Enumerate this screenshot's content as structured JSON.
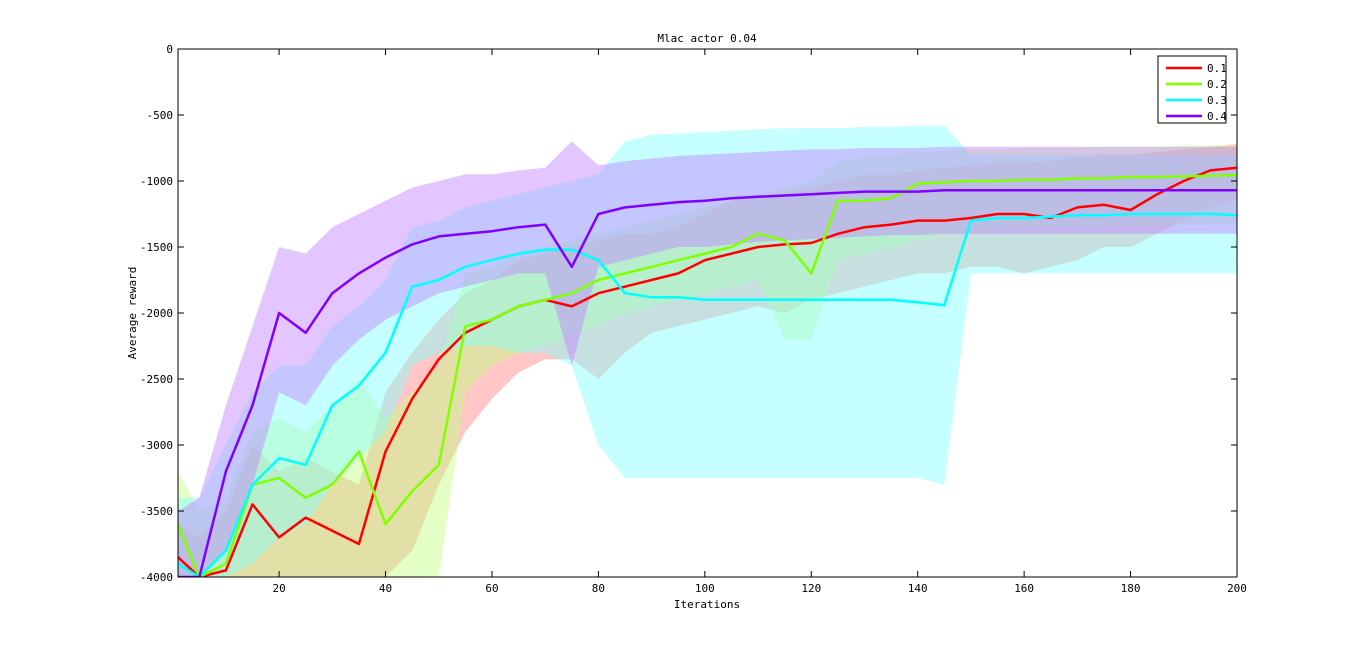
{
  "chart_data": {
    "type": "line",
    "title": "Mlac actor 0.04",
    "xlabel": "Iterations",
    "ylabel": "Average reward",
    "xlim": [
      1,
      200
    ],
    "ylim": [
      -4000,
      0
    ],
    "xticks": [
      20,
      40,
      60,
      80,
      100,
      120,
      140,
      160,
      180,
      200
    ],
    "yticks": [
      0,
      -500,
      -1000,
      -1500,
      -2000,
      -2500,
      -3000,
      -3500,
      -4000
    ],
    "grid": false,
    "legend_position": "top-right",
    "series": [
      {
        "name": "0.1",
        "color": "#ff0000",
        "band_color": "#ff8080",
        "x": [
          1,
          5,
          10,
          15,
          20,
          25,
          30,
          35,
          40,
          45,
          50,
          55,
          60,
          65,
          70,
          75,
          80,
          85,
          90,
          95,
          100,
          105,
          110,
          115,
          120,
          125,
          130,
          135,
          140,
          145,
          150,
          155,
          160,
          165,
          170,
          175,
          180,
          185,
          190,
          195,
          200
        ],
        "values": [
          -3850,
          -4000,
          -3950,
          -3450,
          -3700,
          -3550,
          -3650,
          -3750,
          -3050,
          -2650,
          -2350,
          -2150,
          -2050,
          -1950,
          -1900,
          -1950,
          -1850,
          -1800,
          -1750,
          -1700,
          -1600,
          -1550,
          -1500,
          -1480,
          -1470,
          -1400,
          -1350,
          -1330,
          -1300,
          -1300,
          -1280,
          -1250,
          -1250,
          -1280,
          -1200,
          -1180,
          -1220,
          -1100,
          -1000,
          -920,
          -900
        ],
        "lower": [
          -4000,
          -4000,
          -4000,
          -4000,
          -4000,
          -4000,
          -4000,
          -4000,
          -4000,
          -3800,
          -3300,
          -2900,
          -2650,
          -2450,
          -2350,
          -2350,
          -2500,
          -2300,
          -2150,
          -2100,
          -2050,
          -2000,
          -1950,
          -2000,
          -1900,
          -1850,
          -1800,
          -1750,
          -1700,
          -1700,
          -1650,
          -1650,
          -1700,
          -1650,
          -1600,
          -1500,
          -1500,
          -1400,
          -1300,
          -1200,
          -1150
        ],
        "upper": [
          -3600,
          -3700,
          -3500,
          -3000,
          -3200,
          -3100,
          -3200,
          -3300,
          -2600,
          -2300,
          -2050,
          -1850,
          -1750,
          -1600,
          -1550,
          -1500,
          -1450,
          -1400,
          -1400,
          -1350,
          -1250,
          -1150,
          -1100,
          -1100,
          -1050,
          -1000,
          -950,
          -950,
          -920,
          -900,
          -880,
          -860,
          -860,
          -850,
          -820,
          -800,
          -800,
          -780,
          -760,
          -740,
          -720
        ]
      },
      {
        "name": "0.2",
        "color": "#80ff00",
        "band_color": "#c0ff80",
        "x": [
          1,
          5,
          10,
          15,
          20,
          25,
          30,
          35,
          40,
          45,
          50,
          55,
          60,
          65,
          70,
          75,
          80,
          85,
          90,
          95,
          100,
          105,
          110,
          115,
          120,
          125,
          130,
          135,
          140,
          145,
          150,
          155,
          160,
          165,
          170,
          175,
          180,
          185,
          190,
          195,
          200
        ],
        "values": [
          -3600,
          -4000,
          -3900,
          -3300,
          -3250,
          -3400,
          -3300,
          -3050,
          -3600,
          -3350,
          -3150,
          -2100,
          -2050,
          -1950,
          -1900,
          -1850,
          -1750,
          -1700,
          -1650,
          -1600,
          -1550,
          -1500,
          -1400,
          -1450,
          -1700,
          -1150,
          -1150,
          -1130,
          -1020,
          -1010,
          -1000,
          -1000,
          -990,
          -990,
          -980,
          -980,
          -970,
          -970,
          -965,
          -960,
          -955
        ],
        "lower": [
          -4000,
          -4000,
          -4000,
          -4000,
          -4000,
          -4000,
          -4000,
          -4000,
          -4000,
          -4000,
          -4000,
          -2600,
          -2400,
          -2300,
          -2250,
          -2150,
          -2100,
          -2000,
          -1950,
          -1900,
          -1850,
          -1800,
          -1750,
          -2200,
          -2200,
          -1600,
          -1550,
          -1500,
          -1450,
          -1400,
          -1380,
          -1370,
          -1360,
          -1360,
          -1350,
          -1350,
          -1340,
          -1340,
          -1330,
          -1330,
          -1320
        ],
        "upper": [
          -3200,
          -3500,
          -3400,
          -2900,
          -2800,
          -2900,
          -2700,
          -2500,
          -2800,
          -2600,
          -2400,
          -1700,
          -1650,
          -1550,
          -1500,
          -1450,
          -1400,
          -1350,
          -1300,
          -1250,
          -1200,
          -1150,
          -1100,
          -1050,
          -1000,
          -850,
          -820,
          -800,
          -780,
          -770,
          -760,
          -760,
          -750,
          -750,
          -750,
          -740,
          -740,
          -740,
          -730,
          -730,
          -730
        ]
      },
      {
        "name": "0.3",
        "color": "#00ffff",
        "band_color": "#80ffff",
        "x": [
          1,
          5,
          10,
          15,
          20,
          25,
          30,
          35,
          40,
          45,
          50,
          55,
          60,
          65,
          70,
          75,
          80,
          85,
          90,
          95,
          100,
          105,
          110,
          115,
          120,
          125,
          130,
          135,
          140,
          145,
          150,
          155,
          160,
          165,
          170,
          175,
          180,
          185,
          190,
          195,
          200
        ],
        "values": [
          -3900,
          -4000,
          -3800,
          -3300,
          -3100,
          -3150,
          -2700,
          -2550,
          -2300,
          -1800,
          -1750,
          -1650,
          -1600,
          -1550,
          -1520,
          -1520,
          -1600,
          -1850,
          -1880,
          -1880,
          -1900,
          -1900,
          -1900,
          -1900,
          -1900,
          -1900,
          -1900,
          -1900,
          -1920,
          -1940,
          -1300,
          -1280,
          -1280,
          -1270,
          -1260,
          -1260,
          -1250,
          -1250,
          -1250,
          -1250,
          -1260
        ],
        "lower": [
          -4000,
          -4000,
          -4000,
          -3900,
          -3700,
          -3600,
          -3300,
          -3100,
          -2900,
          -2400,
          -2300,
          -2250,
          -2250,
          -2300,
          -2300,
          -2400,
          -3000,
          -3250,
          -3250,
          -3250,
          -3250,
          -3250,
          -3250,
          -3250,
          -3250,
          -3250,
          -3250,
          -3250,
          -3250,
          -3300,
          -1700,
          -1700,
          -1700,
          -1700,
          -1700,
          -1700,
          -1700,
          -1700,
          -1700,
          -1700,
          -1700
        ],
        "upper": [
          -3400,
          -3400,
          -3000,
          -2600,
          -2400,
          -2400,
          -2100,
          -1950,
          -1750,
          -1350,
          -1300,
          -1200,
          -1150,
          -1100,
          -1050,
          -1000,
          -950,
          -700,
          -650,
          -640,
          -630,
          -620,
          -610,
          -600,
          -600,
          -600,
          -590,
          -590,
          -580,
          -580,
          -800,
          -800,
          -800,
          -800,
          -800,
          -800,
          -800,
          -800,
          -800,
          -800,
          -800
        ]
      },
      {
        "name": "0.4",
        "color": "#8000ff",
        "band_color": "#c080ff",
        "x": [
          1,
          5,
          10,
          15,
          20,
          25,
          30,
          35,
          40,
          45,
          50,
          55,
          60,
          65,
          70,
          75,
          80,
          85,
          90,
          95,
          100,
          105,
          110,
          115,
          120,
          125,
          130,
          135,
          140,
          145,
          150,
          155,
          160,
          165,
          170,
          175,
          180,
          185,
          190,
          195,
          200
        ],
        "values": [
          -4000,
          -4000,
          -3200,
          -2700,
          -2000,
          -2150,
          -1850,
          -1700,
          -1580,
          -1480,
          -1420,
          -1400,
          -1380,
          -1350,
          -1330,
          -1650,
          -1250,
          -1200,
          -1180,
          -1160,
          -1150,
          -1130,
          -1120,
          -1110,
          -1100,
          -1090,
          -1080,
          -1080,
          -1080,
          -1070,
          -1070,
          -1070,
          -1070,
          -1070,
          -1070,
          -1070,
          -1070,
          -1070,
          -1070,
          -1070,
          -1070
        ],
        "lower": [
          -4000,
          -4000,
          -3800,
          -3300,
          -2600,
          -2700,
          -2400,
          -2200,
          -2050,
          -1950,
          -1850,
          -1800,
          -1750,
          -1700,
          -1700,
          -2400,
          -1650,
          -1600,
          -1550,
          -1500,
          -1500,
          -1480,
          -1460,
          -1450,
          -1440,
          -1430,
          -1420,
          -1410,
          -1410,
          -1400,
          -1400,
          -1400,
          -1400,
          -1400,
          -1400,
          -1400,
          -1400,
          -1400,
          -1400,
          -1400,
          -1400
        ],
        "upper": [
          -3500,
          -3400,
          -2700,
          -2100,
          -1500,
          -1550,
          -1350,
          -1250,
          -1150,
          -1050,
          -1000,
          -950,
          -950,
          -920,
          -900,
          -700,
          -880,
          -850,
          -830,
          -810,
          -800,
          -790,
          -780,
          -770,
          -760,
          -760,
          -750,
          -750,
          -750,
          -740,
          -740,
          -740,
          -740,
          -740,
          -740,
          -740,
          -740,
          -740,
          -740,
          -740,
          -740
        ]
      }
    ]
  }
}
